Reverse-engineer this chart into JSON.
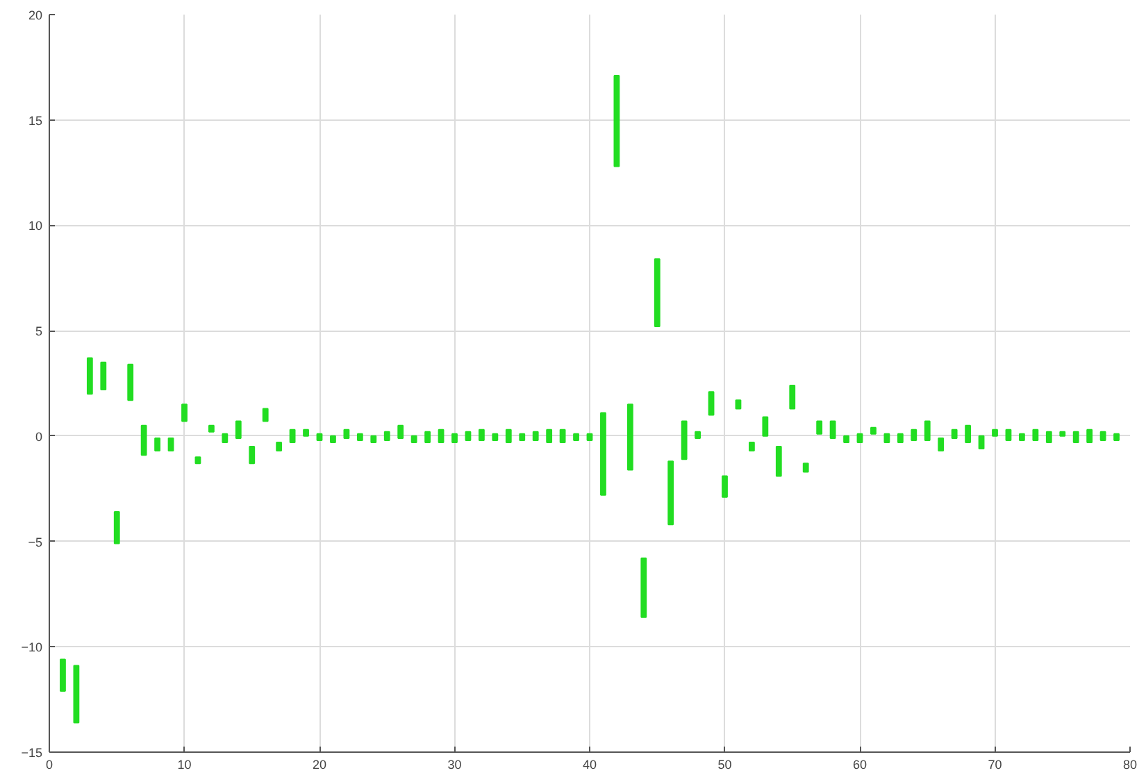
{
  "chart_data": {
    "type": "bar",
    "x": [
      1,
      2,
      3,
      4,
      5,
      6,
      7,
      8,
      9,
      10,
      11,
      12,
      13,
      14,
      15,
      16,
      17,
      18,
      19,
      20,
      21,
      22,
      23,
      24,
      25,
      26,
      27,
      28,
      29,
      30,
      31,
      32,
      33,
      34,
      35,
      36,
      37,
      38,
      39,
      40,
      41,
      42,
      43,
      44,
      45,
      46,
      47,
      48,
      49,
      50,
      51,
      52,
      53,
      54,
      55,
      56,
      57,
      58,
      59,
      60,
      61,
      62,
      63,
      64,
      65,
      66,
      67,
      68,
      69,
      70,
      71,
      72,
      73,
      74,
      75,
      76,
      77,
      78,
      79
    ],
    "base": [
      -12.1,
      -13.6,
      2.0,
      2.2,
      -5.1,
      1.7,
      -0.9,
      -0.7,
      -0.7,
      0.7,
      -1.3,
      0.2,
      -0.3,
      -0.1,
      -1.3,
      0.7,
      -0.7,
      -0.3,
      0,
      -0.2,
      -0.3,
      -0.1,
      -0.2,
      -0.3,
      -0.2,
      -0.1,
      -0.3,
      -0.3,
      -0.3,
      -0.3,
      -0.2,
      -0.2,
      -0.2,
      -0.3,
      -0.2,
      -0.2,
      -0.3,
      -0.3,
      -0.2,
      -0.2,
      -2.8,
      12.8,
      -1.6,
      -8.6,
      5.2,
      -4.2,
      -1.1,
      -0.1,
      1.0,
      -2.9,
      1.3,
      -0.7,
      0,
      -1.9,
      1.3,
      -1.7,
      0.1,
      -0.1,
      -0.3,
      -0.3,
      0.1,
      -0.3,
      -0.3,
      -0.2,
      -0.2,
      -0.7,
      -0.1,
      -0.3,
      -0.6,
      0,
      -0.2,
      -0.2,
      -0.2,
      -0.3,
      0,
      -0.3,
      -0.3,
      -0.2,
      -0.2
    ],
    "values": [
      1.5,
      2.7,
      1.7,
      1.3,
      1.5,
      1.7,
      1.4,
      0.6,
      0.6,
      0.8,
      0.3,
      0.3,
      0.4,
      0.8,
      0.8,
      0.6,
      0.4,
      0.6,
      0.3,
      0.3,
      0.3,
      0.4,
      0.3,
      0.3,
      0.4,
      0.6,
      0.3,
      0.5,
      0.6,
      0.4,
      0.4,
      0.5,
      0.3,
      0.6,
      0.3,
      0.4,
      0.6,
      0.6,
      0.3,
      0.3,
      3.9,
      4.3,
      3.1,
      2.8,
      3.2,
      3.0,
      1.8,
      0.3,
      1.1,
      1.0,
      0.4,
      0.4,
      0.9,
      1.4,
      1.1,
      0.4,
      0.6,
      0.8,
      0.3,
      0.4,
      0.3,
      0.4,
      0.4,
      0.5,
      0.9,
      0.6,
      0.4,
      0.8,
      0.6,
      0.3,
      0.5,
      0.3,
      0.5,
      0.5,
      0.2,
      0.5,
      0.6,
      0.4,
      0.3
    ],
    "color": "#22dd22",
    "xlim": [
      0,
      80
    ],
    "xticks": [
      0,
      10,
      20,
      30,
      40,
      50,
      60,
      70,
      80
    ],
    "ylim": [
      -15,
      20
    ],
    "yticks": [
      -15,
      -10,
      -5,
      0,
      5,
      10,
      15,
      20
    ],
    "grid": true
  }
}
